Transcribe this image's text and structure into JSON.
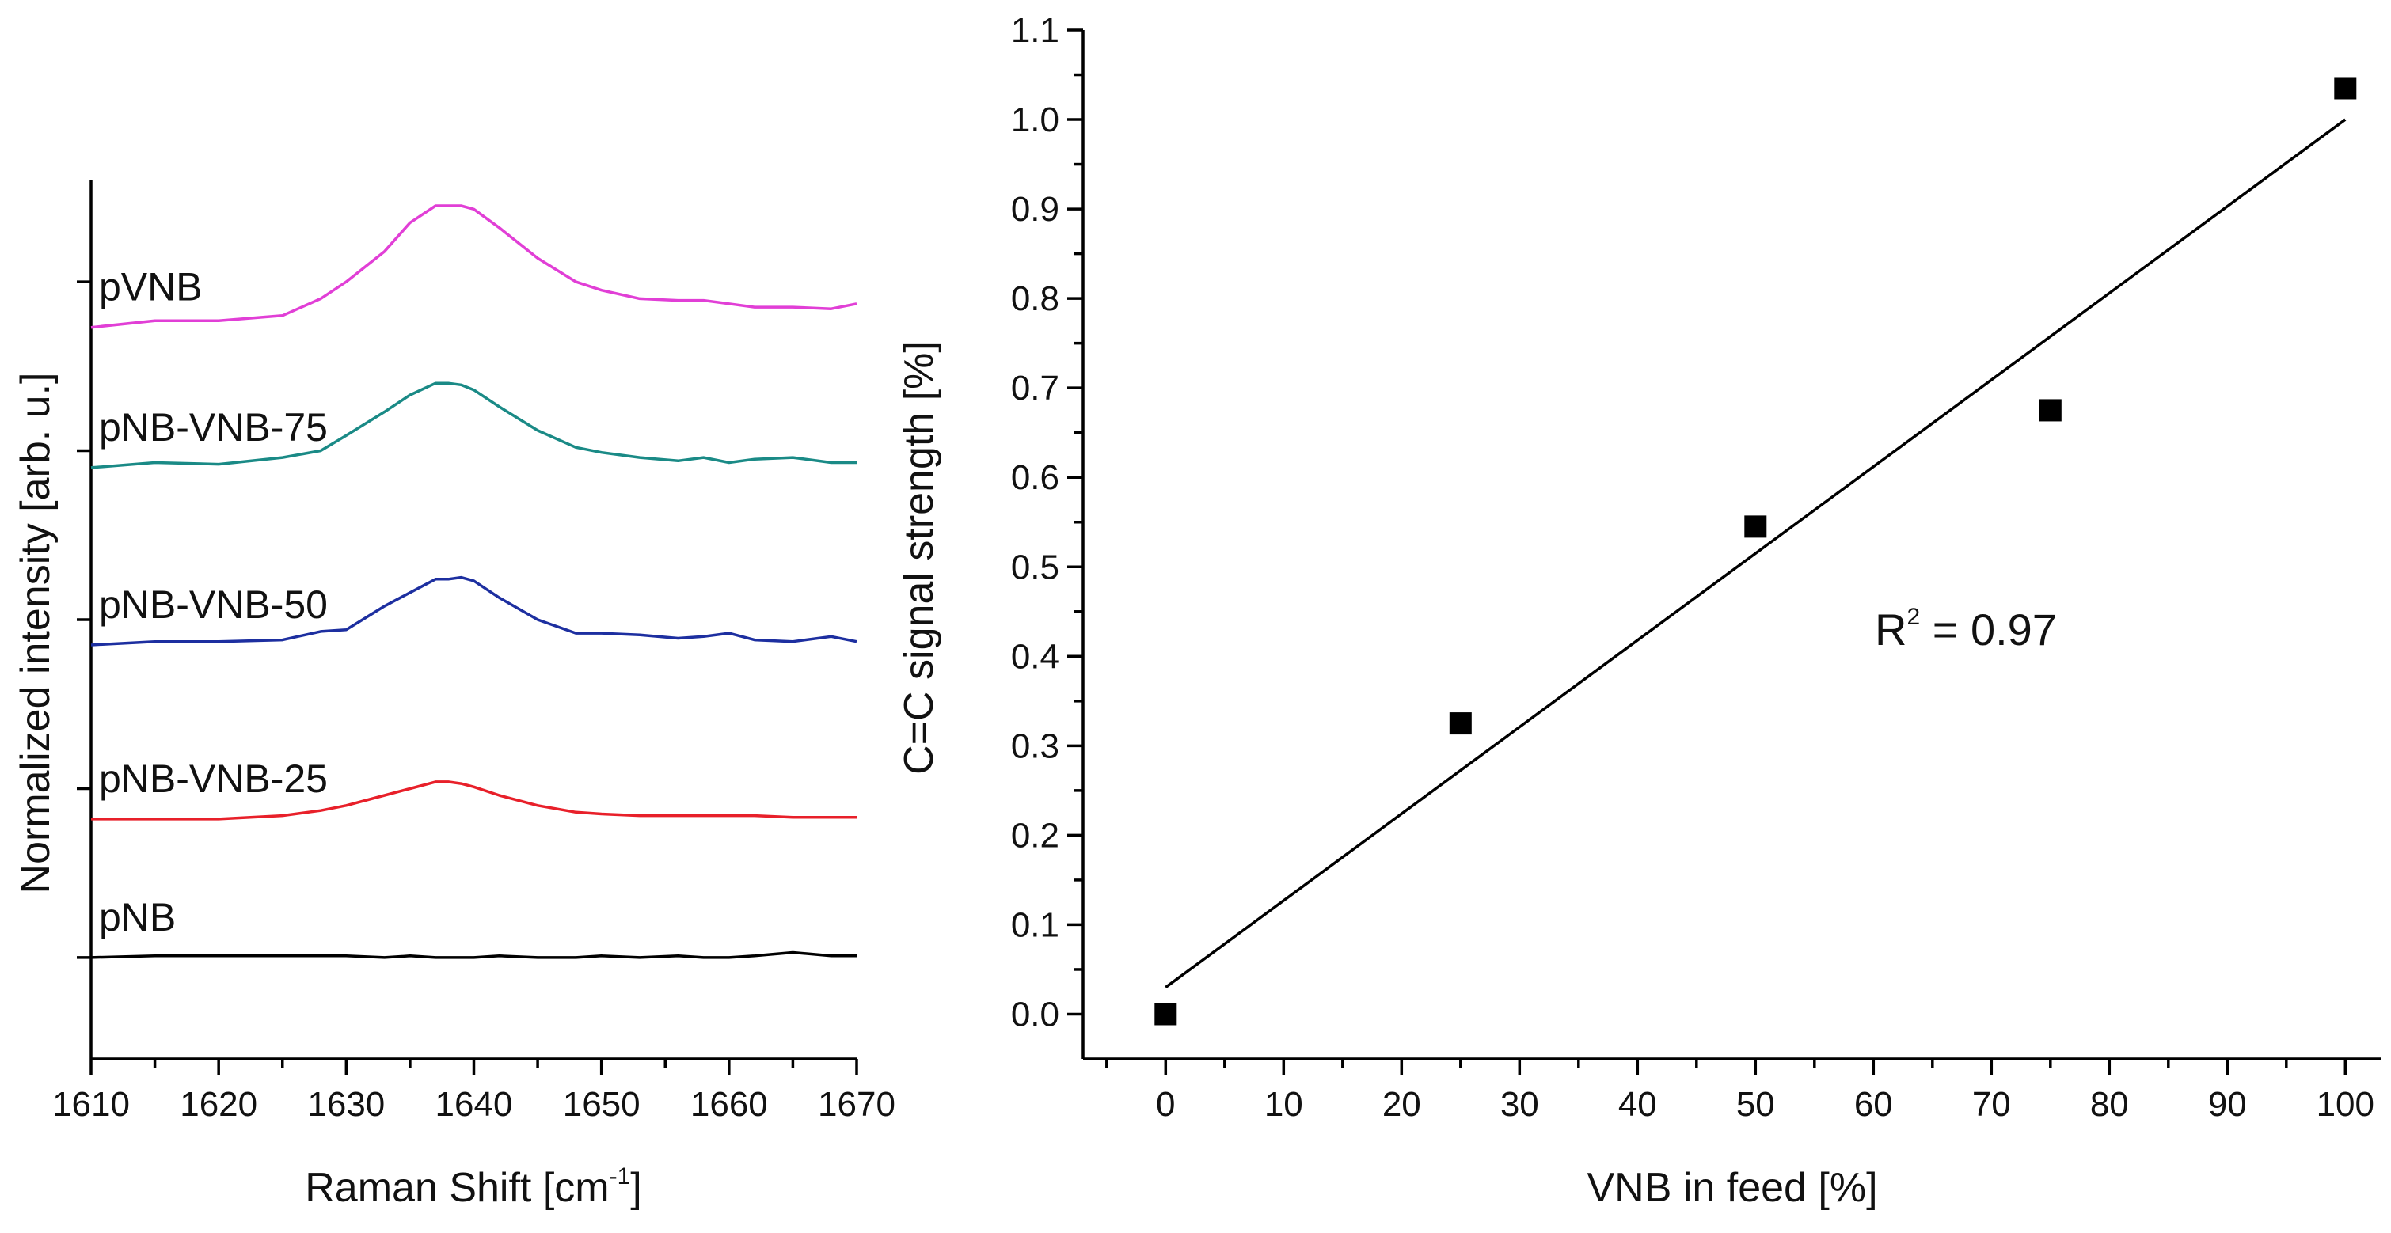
{
  "chart_data": [
    {
      "type": "line",
      "panel": "left",
      "title": "",
      "xlabel": "Raman Shift [cm",
      "xlabel_sup": "-1",
      "xlabel_suffix": "]",
      "ylabel": "Normalized intensity [arb. u.]",
      "xlim": [
        1610,
        1670
      ],
      "x_ticks": [
        "1610",
        "1620",
        "1630",
        "1640",
        "1650",
        "1660",
        "1670"
      ],
      "y_tick_values": [
        0,
        1,
        2,
        3,
        4
      ],
      "ylim": [
        -0.6,
        4.6
      ],
      "grid": false,
      "x": [
        1610,
        1615,
        1620,
        1625,
        1628,
        1630,
        1633,
        1635,
        1637,
        1638,
        1639,
        1640,
        1642,
        1645,
        1648,
        1650,
        1653,
        1656,
        1658,
        1660,
        1662,
        1665,
        1668,
        1670
      ],
      "series": [
        {
          "name": "pNB",
          "color": "#000000",
          "baseline": 0,
          "values": [
            0.0,
            0.01,
            0.01,
            0.01,
            0.01,
            0.01,
            0.0,
            0.01,
            0.0,
            0.0,
            0.0,
            0.0,
            0.01,
            0.0,
            0.0,
            0.01,
            0.0,
            0.01,
            0.0,
            0.0,
            0.01,
            0.03,
            0.01,
            0.01
          ]
        },
        {
          "name": "pNB-VNB-25",
          "color": "#e8202a",
          "baseline": 0.82,
          "values": [
            0.82,
            0.82,
            0.82,
            0.84,
            0.87,
            0.9,
            0.96,
            1.0,
            1.04,
            1.04,
            1.03,
            1.01,
            0.96,
            0.9,
            0.86,
            0.85,
            0.84,
            0.84,
            0.84,
            0.84,
            0.84,
            0.83,
            0.83,
            0.83
          ]
        },
        {
          "name": "pNB-VNB-50",
          "color": "#1d2fa0",
          "baseline": 1.85,
          "values": [
            1.85,
            1.87,
            1.87,
            1.88,
            1.93,
            1.94,
            2.08,
            2.16,
            2.24,
            2.24,
            2.25,
            2.23,
            2.13,
            2.0,
            1.92,
            1.92,
            1.91,
            1.89,
            1.9,
            1.92,
            1.88,
            1.87,
            1.9,
            1.87
          ]
        },
        {
          "name": "pNB-VNB-75",
          "color": "#1a8a86",
          "baseline": 2.9,
          "values": [
            2.9,
            2.93,
            2.92,
            2.96,
            3.0,
            3.09,
            3.23,
            3.33,
            3.4,
            3.4,
            3.39,
            3.36,
            3.26,
            3.12,
            3.02,
            2.99,
            2.96,
            2.94,
            2.96,
            2.93,
            2.95,
            2.96,
            2.93,
            2.93
          ]
        },
        {
          "name": "pVNB",
          "color": "#e13fd6",
          "baseline": 3.73,
          "values": [
            3.73,
            3.77,
            3.77,
            3.8,
            3.9,
            4.0,
            4.18,
            4.35,
            4.45,
            4.45,
            4.45,
            4.43,
            4.32,
            4.14,
            4.0,
            3.95,
            3.9,
            3.89,
            3.89,
            3.87,
            3.85,
            3.85,
            3.84,
            3.87
          ]
        }
      ]
    },
    {
      "type": "scatter",
      "panel": "right",
      "title": "",
      "xlabel": "VNB in feed [%]",
      "ylabel": "C=C signal strength [%]",
      "xlim": [
        -7,
        103
      ],
      "ylim": [
        -0.05,
        1.1
      ],
      "x_ticks": [
        "0",
        "10",
        "20",
        "30",
        "40",
        "50",
        "60",
        "70",
        "80",
        "90",
        "100"
      ],
      "y_ticks": [
        "0.0",
        "0.1",
        "0.2",
        "0.3",
        "0.4",
        "0.5",
        "0.6",
        "0.7",
        "0.8",
        "0.9",
        "1.0",
        "1.1"
      ],
      "grid": false,
      "points": [
        {
          "x": 0,
          "y": 0.0
        },
        {
          "x": 25,
          "y": 0.325
        },
        {
          "x": 50,
          "y": 0.545
        },
        {
          "x": 75,
          "y": 0.675
        },
        {
          "x": 100,
          "y": 1.035
        }
      ],
      "fit": {
        "x1": 0,
        "y1": 0.03,
        "x2": 100,
        "y2": 1.0
      },
      "annotation": {
        "text": "R",
        "sup": "2",
        "suffix": " = 0.97"
      }
    }
  ]
}
